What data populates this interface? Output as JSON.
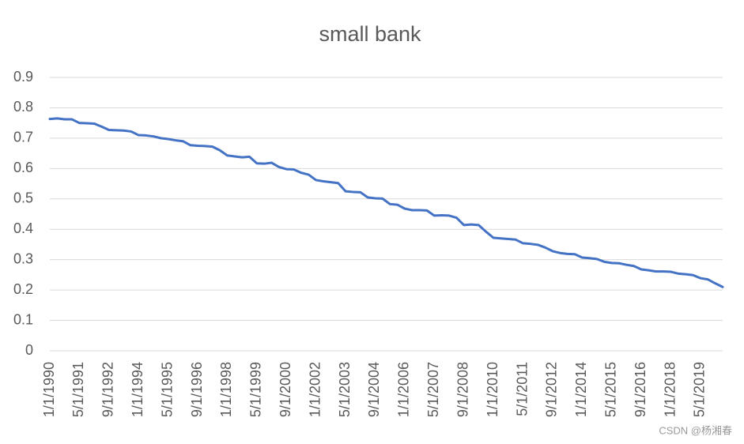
{
  "chart_data": {
    "type": "line",
    "title": "small bank",
    "categories": [
      "1/1/1990",
      null,
      null,
      null,
      "5/1/1991",
      null,
      null,
      null,
      "9/1/1992",
      null,
      null,
      null,
      "1/1/1994",
      null,
      null,
      null,
      "5/1/1995",
      null,
      null,
      null,
      "9/1/1996",
      null,
      null,
      null,
      "1/1/1998",
      null,
      null,
      null,
      "5/1/1999",
      null,
      null,
      null,
      "9/1/2000",
      null,
      null,
      null,
      "1/1/2002",
      null,
      null,
      null,
      "5/1/2003",
      null,
      null,
      null,
      "9/1/2004",
      null,
      null,
      null,
      "1/1/2006",
      null,
      null,
      null,
      "5/1/2007",
      null,
      null,
      null,
      "9/1/2008",
      null,
      null,
      null,
      "1/1/2010",
      null,
      null,
      null,
      "5/1/2011",
      null,
      null,
      null,
      "9/1/2012",
      null,
      null,
      null,
      "1/1/2014",
      null,
      null,
      null,
      "5/1/2015",
      null,
      null,
      null,
      "9/1/2016",
      null,
      null,
      null,
      "1/1/2018",
      null,
      null,
      null,
      "5/1/2019",
      null,
      null,
      null
    ],
    "values": [
      0.763,
      0.765,
      0.762,
      0.762,
      0.75,
      0.749,
      0.748,
      0.738,
      0.727,
      0.726,
      0.725,
      0.722,
      0.71,
      0.709,
      0.706,
      0.7,
      0.697,
      0.693,
      0.69,
      0.677,
      0.675,
      0.674,
      0.672,
      0.66,
      0.643,
      0.64,
      0.637,
      0.639,
      0.617,
      0.616,
      0.619,
      0.605,
      0.598,
      0.597,
      0.586,
      0.58,
      0.562,
      0.558,
      0.555,
      0.552,
      0.525,
      0.523,
      0.522,
      0.505,
      0.502,
      0.501,
      0.483,
      0.481,
      0.468,
      0.463,
      0.463,
      0.462,
      0.445,
      0.446,
      0.445,
      0.438,
      0.414,
      0.416,
      0.414,
      0.392,
      0.372,
      0.37,
      0.368,
      0.366,
      0.354,
      0.352,
      0.349,
      0.34,
      0.328,
      0.322,
      0.319,
      0.318,
      0.307,
      0.305,
      0.302,
      0.293,
      0.289,
      0.288,
      0.283,
      0.279,
      0.268,
      0.265,
      0.261,
      0.261,
      0.26,
      0.254,
      0.252,
      0.249,
      0.239,
      0.235,
      0.222,
      0.21
    ],
    "color": "#4472c4",
    "ylim": [
      0,
      0.9
    ],
    "yticks": [
      0,
      0.1,
      0.2,
      0.3,
      0.4,
      0.5,
      0.6,
      0.7,
      0.8,
      0.9
    ],
    "grid": true
  },
  "watermark": "CSDN @杨湘春"
}
